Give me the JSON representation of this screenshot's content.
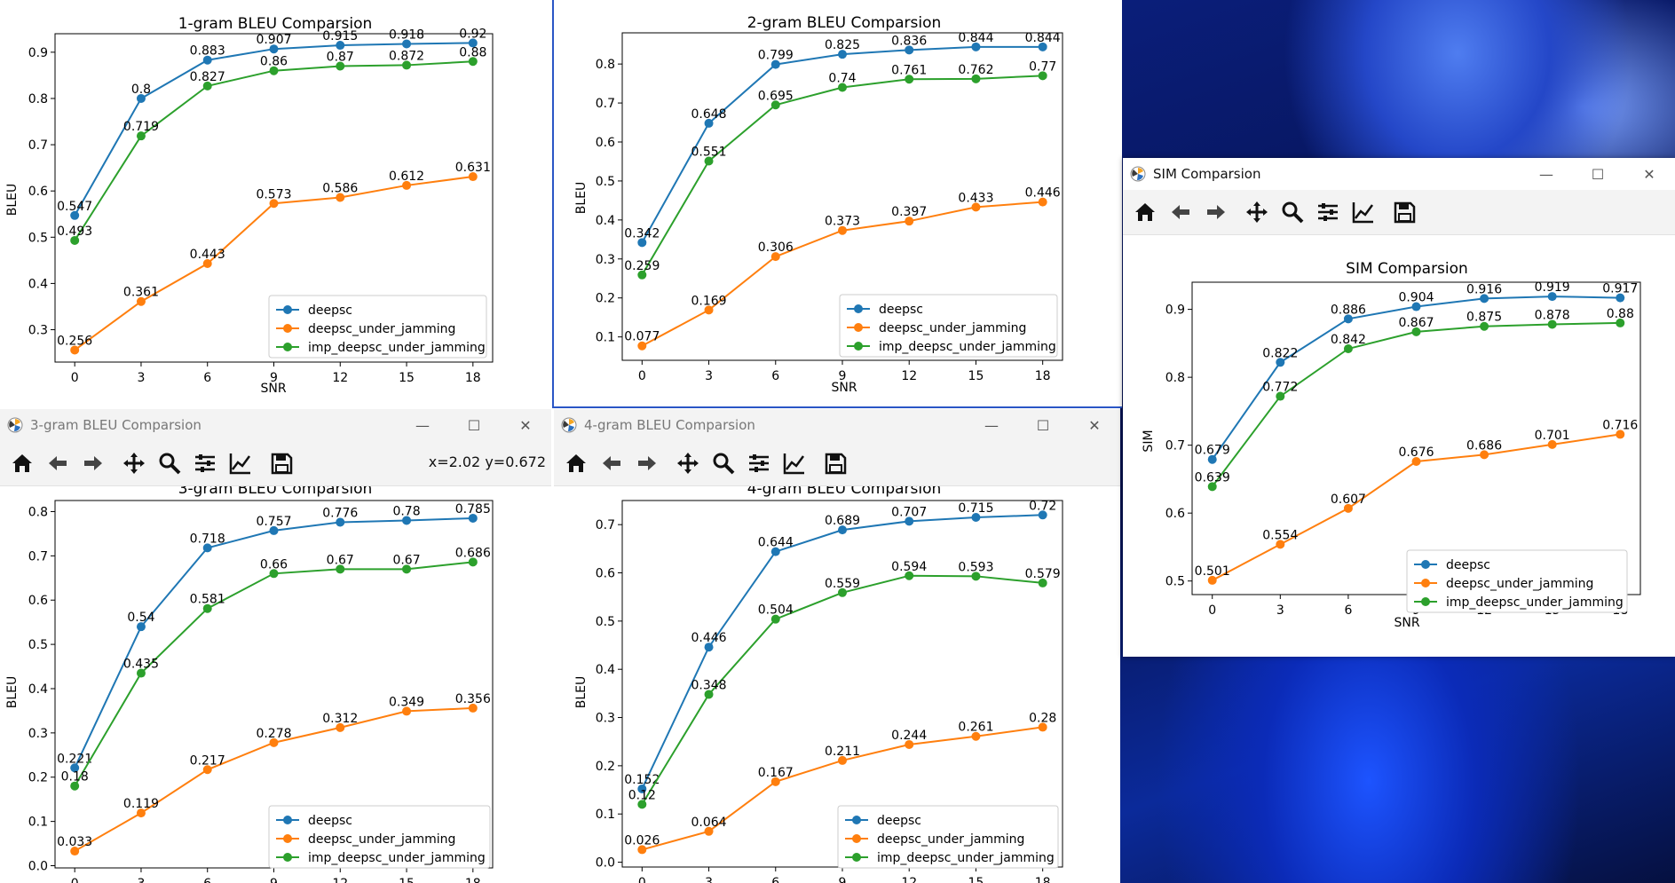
{
  "colors": {
    "deepsc": "#1f77b4",
    "jam": "#ff7f0e",
    "imp": "#2ca02c"
  },
  "windows": {
    "w3": {
      "title": "3-gram BLEU Comparsion",
      "coord": "x=2.02 y=0.672"
    },
    "w4": {
      "title": "4-gram BLEU Comparsion"
    },
    "sim": {
      "title": "SIM Comparsion"
    }
  },
  "toolbar_icons": [
    "home-icon",
    "back-icon",
    "forward-icon",
    "pan-icon",
    "zoom-icon",
    "configure-icon",
    "edit-axis-icon",
    "save-icon"
  ],
  "chart_data": [
    {
      "id": "c1",
      "type": "line",
      "title": "1-gram BLEU Comparsion",
      "xlabel": "SNR",
      "ylabel": "BLEU",
      "x": [
        0,
        3,
        6,
        9,
        12,
        15,
        18
      ],
      "ylim": [
        0.23,
        0.94
      ],
      "yticks": [
        0.3,
        0.4,
        0.5,
        0.6,
        0.7,
        0.8,
        0.9
      ],
      "yticklabels": [
        "0.3",
        "0.4",
        "0.5",
        "0.6",
        "0.7",
        "0.8",
        "0.9"
      ],
      "legend": "bottom-right",
      "series": [
        {
          "name": "deepsc",
          "color": "#1f77b4",
          "values": [
            0.547,
            0.8,
            0.883,
            0.907,
            0.915,
            0.918,
            0.92
          ],
          "labels": [
            "0.547",
            "0.8",
            "0.883",
            "0.907",
            "0.915",
            "0.918",
            "0.92"
          ]
        },
        {
          "name": "deepsc_under_jamming",
          "color": "#ff7f0e",
          "values": [
            0.256,
            0.361,
            0.443,
            0.573,
            0.586,
            0.612,
            0.631
          ],
          "labels": [
            "0.256",
            "0.361",
            "0.443",
            "0.573",
            "0.586",
            "0.612",
            "0.631"
          ]
        },
        {
          "name": "imp_deepsc_under_jamming",
          "color": "#2ca02c",
          "values": [
            0.493,
            0.719,
            0.827,
            0.86,
            0.87,
            0.872,
            0.88
          ],
          "labels": [
            "0.493",
            "0.719",
            "0.827",
            "0.86",
            "0.87",
            "0.872",
            "0.88"
          ]
        }
      ]
    },
    {
      "id": "c2",
      "type": "line",
      "title": "2-gram BLEU Comparsion",
      "xlabel": "SNR",
      "ylabel": "BLEU",
      "x": [
        0,
        3,
        6,
        9,
        12,
        15,
        18
      ],
      "ylim": [
        0.04,
        0.88
      ],
      "yticks": [
        0.1,
        0.2,
        0.3,
        0.4,
        0.5,
        0.6,
        0.7,
        0.8
      ],
      "yticklabels": [
        "0.1",
        "0.2",
        "0.3",
        "0.4",
        "0.5",
        "0.6",
        "0.7",
        "0.8"
      ],
      "legend": "bottom-right",
      "series": [
        {
          "name": "deepsc",
          "color": "#1f77b4",
          "values": [
            0.342,
            0.648,
            0.799,
            0.825,
            0.836,
            0.844,
            0.844
          ],
          "labels": [
            "0.342",
            "0.648",
            "0.799",
            "0.825",
            "0.836",
            "0.844",
            "0.844"
          ]
        },
        {
          "name": "deepsc_under_jamming",
          "color": "#ff7f0e",
          "values": [
            0.077,
            0.169,
            0.306,
            0.373,
            0.397,
            0.433,
            0.446
          ],
          "labels": [
            "0.077",
            "0.169",
            "0.306",
            "0.373",
            "0.397",
            "0.433",
            "0.446"
          ]
        },
        {
          "name": "imp_deepsc_under_jamming",
          "color": "#2ca02c",
          "values": [
            0.259,
            0.551,
            0.695,
            0.74,
            0.761,
            0.762,
            0.77
          ],
          "labels": [
            "0.259",
            "0.551",
            "0.695",
            "0.74",
            "0.761",
            "0.762",
            "0.77"
          ]
        }
      ]
    },
    {
      "id": "c3",
      "type": "line",
      "title": "3-gram BLEU Comparsion",
      "xlabel": "",
      "ylabel": "BLEU",
      "x": [
        0,
        3,
        6,
        9,
        12,
        15,
        18
      ],
      "ylim": [
        -0.005,
        0.825
      ],
      "yticks": [
        0.0,
        0.1,
        0.2,
        0.3,
        0.4,
        0.5,
        0.6,
        0.7,
        0.8
      ],
      "yticklabels": [
        "0.0",
        "0.1",
        "0.2",
        "0.3",
        "0.4",
        "0.5",
        "0.6",
        "0.7",
        "0.8"
      ],
      "legend": "bottom-right",
      "series": [
        {
          "name": "deepsc",
          "color": "#1f77b4",
          "values": [
            0.221,
            0.54,
            0.718,
            0.757,
            0.776,
            0.78,
            0.785
          ],
          "labels": [
            "0.221",
            "0.54",
            "0.718",
            "0.757",
            "0.776",
            "0.78",
            "0.785"
          ]
        },
        {
          "name": "deepsc_under_jamming",
          "color": "#ff7f0e",
          "values": [
            0.033,
            0.119,
            0.217,
            0.278,
            0.312,
            0.349,
            0.356
          ],
          "labels": [
            "0.033",
            "0.119",
            "0.217",
            "0.278",
            "0.312",
            "0.349",
            "0.356"
          ]
        },
        {
          "name": "imp_deepsc_under_jamming",
          "color": "#2ca02c",
          "values": [
            0.18,
            0.435,
            0.581,
            0.66,
            0.67,
            0.67,
            0.686
          ],
          "labels": [
            "0.18",
            "0.435",
            "0.581",
            "0.66",
            "0.67",
            "0.67",
            "0.686"
          ]
        }
      ]
    },
    {
      "id": "c4",
      "type": "line",
      "title": "4-gram BLEU Comparsion",
      "xlabel": "",
      "ylabel": "BLEU",
      "x": [
        0,
        3,
        6,
        9,
        12,
        15,
        18
      ],
      "ylim": [
        -0.01,
        0.75
      ],
      "yticks": [
        0.0,
        0.1,
        0.2,
        0.3,
        0.4,
        0.5,
        0.6,
        0.7
      ],
      "yticklabels": [
        "0.0",
        "0.1",
        "0.2",
        "0.3",
        "0.4",
        "0.5",
        "0.6",
        "0.7"
      ],
      "legend": "bottom-right",
      "series": [
        {
          "name": "deepsc",
          "color": "#1f77b4",
          "values": [
            0.152,
            0.446,
            0.644,
            0.689,
            0.707,
            0.715,
            0.72
          ],
          "labels": [
            "0.152",
            "0.446",
            "0.644",
            "0.689",
            "0.707",
            "0.715",
            "0.72"
          ]
        },
        {
          "name": "deepsc_under_jamming",
          "color": "#ff7f0e",
          "values": [
            0.026,
            0.064,
            0.167,
            0.211,
            0.244,
            0.261,
            0.28
          ],
          "labels": [
            "0.026",
            "0.064",
            "0.167",
            "0.211",
            "0.244",
            "0.261",
            "0.28"
          ]
        },
        {
          "name": "imp_deepsc_under_jamming",
          "color": "#2ca02c",
          "values": [
            0.12,
            0.348,
            0.504,
            0.559,
            0.594,
            0.593,
            0.579
          ],
          "labels": [
            "0.12",
            "0.348",
            "0.504",
            "0.559",
            "0.594",
            "0.593",
            "0.579"
          ]
        }
      ]
    },
    {
      "id": "c5",
      "type": "line",
      "title": "SIM Comparsion",
      "xlabel": "SNR",
      "ylabel": "SIM",
      "x": [
        0,
        3,
        6,
        9,
        12,
        15,
        18
      ],
      "ylim": [
        0.48,
        0.94
      ],
      "yticks": [
        0.5,
        0.6,
        0.7,
        0.8,
        0.9
      ],
      "yticklabels": [
        "0.5",
        "0.6",
        "0.7",
        "0.8",
        "0.9"
      ],
      "legend": "bottom-right",
      "series": [
        {
          "name": "deepsc",
          "color": "#1f77b4",
          "values": [
            0.679,
            0.822,
            0.886,
            0.904,
            0.916,
            0.919,
            0.917
          ],
          "labels": [
            "0.679",
            "0.822",
            "0.886",
            "0.904",
            "0.916",
            "0.919",
            "0.917"
          ]
        },
        {
          "name": "deepsc_under_jamming",
          "color": "#ff7f0e",
          "values": [
            0.501,
            0.554,
            0.607,
            0.676,
            0.686,
            0.701,
            0.716
          ],
          "labels": [
            "0.501",
            "0.554",
            "0.607",
            "0.676",
            "0.686",
            "0.701",
            "0.716"
          ]
        },
        {
          "name": "imp_deepsc_under_jamming",
          "color": "#2ca02c",
          "values": [
            0.639,
            0.772,
            0.842,
            0.867,
            0.875,
            0.878,
            0.88
          ],
          "labels": [
            "0.639",
            "0.772",
            "0.842",
            "0.867",
            "0.875",
            "0.878",
            "0.88"
          ]
        }
      ]
    }
  ]
}
